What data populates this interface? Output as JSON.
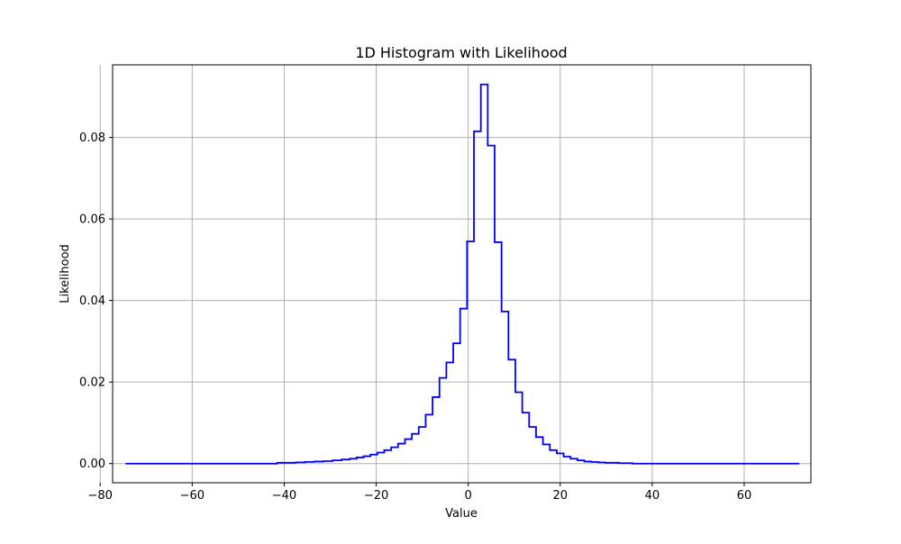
{
  "chart_data": {
    "type": "line",
    "drawstyle": "steps-mid",
    "title": "1D Histogram with Likelihood",
    "xlabel": "Value",
    "ylabel": "Likelihood",
    "xlim": [
      -77.3,
      74.5
    ],
    "ylim": [
      -0.0047,
      0.0978
    ],
    "xticks": [
      -80,
      -60,
      -40,
      -20,
      0,
      20,
      40,
      60
    ],
    "xtick_labels": [
      "−80",
      "−60",
      "−40",
      "−20",
      "0",
      "20",
      "40",
      "60"
    ],
    "yticks": [
      0.0,
      0.02,
      0.04,
      0.06,
      0.08
    ],
    "ytick_labels": [
      "0.00",
      "0.02",
      "0.04",
      "0.06",
      "0.08"
    ],
    "grid": true,
    "line_color": "#0000ff",
    "series": [
      {
        "x": [
          -74.5,
          -72.5,
          -70.5,
          -68.5,
          -66.5,
          -64.5,
          -62.5,
          -60.5,
          -58.5,
          -56.5,
          -54.5,
          -52.5,
          -50.5,
          -48.5,
          -46.5,
          -44.5,
          -42.5,
          -40.5,
          -38.5,
          -36.5,
          -34.5,
          -32.5,
          -30.5,
          -28.5,
          -26.5,
          -25,
          -23.5,
          -22,
          -20.5,
          -19,
          -17.5,
          -16,
          -14.5,
          -13,
          -11.5,
          -10,
          -8.5,
          -7,
          -5.5,
          -4,
          -2.5,
          -1,
          0.5,
          2,
          3.5,
          5,
          6.5,
          8,
          9.5,
          11,
          12.5,
          14,
          15.5,
          17,
          18.5,
          20,
          21.5,
          23,
          24.5,
          26,
          27.5,
          29,
          30.5,
          32,
          33.5,
          35,
          36.5,
          40,
          45,
          50,
          55,
          60,
          65,
          70,
          72
        ],
        "y": [
          0,
          0,
          0,
          0,
          0,
          0,
          0,
          0,
          0,
          0,
          0,
          0,
          0,
          0,
          0,
          0,
          0,
          0.0002,
          0.0002,
          0.0003,
          0.0004,
          0.0005,
          0.0006,
          0.0008,
          0.001,
          0.0012,
          0.0015,
          0.0018,
          0.0022,
          0.0027,
          0.0033,
          0.004,
          0.0049,
          0.006,
          0.0073,
          0.009,
          0.012,
          0.0163,
          0.021,
          0.0248,
          0.0295,
          0.038,
          0.0545,
          0.0815,
          0.093,
          0.078,
          0.0543,
          0.0373,
          0.0255,
          0.0175,
          0.0125,
          0.009,
          0.0065,
          0.0047,
          0.0033,
          0.0025,
          0.0017,
          0.0012,
          0.0008,
          0.0005,
          0.0004,
          0.0003,
          0.0002,
          0.0002,
          0.0001,
          0.0001,
          0,
          0,
          0,
          0,
          0,
          0,
          0,
          0,
          0
        ]
      }
    ]
  }
}
